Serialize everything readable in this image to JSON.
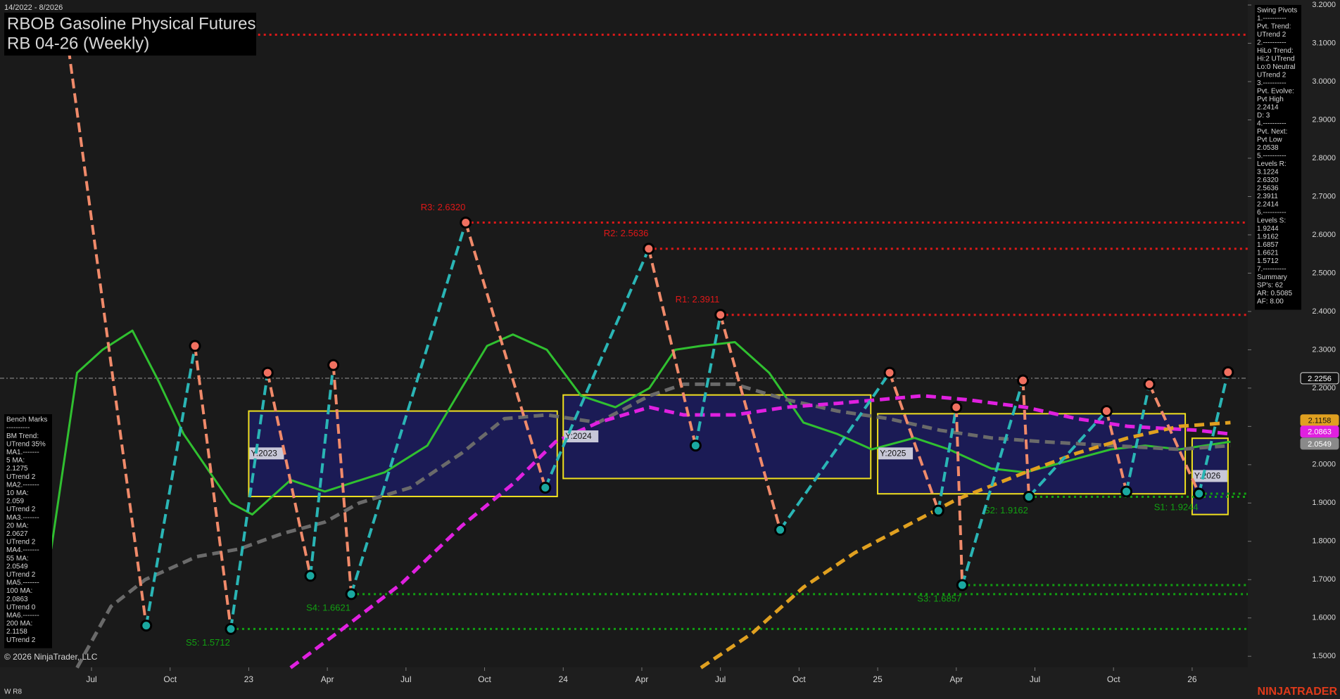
{
  "chart_data": {
    "type": "line",
    "title": "RBOB Gasoline Physical Futures",
    "subtitle": "RB 04-26 (Weekly)",
    "date_range": "14/2022 - 8/2026",
    "copyright": "© 2026 NinjaTrader, LLC",
    "footer_left": "W R8",
    "brand": "NINJATRADER",
    "xlim": [
      2022.209,
      2026.177
    ],
    "xticks": [
      {
        "value": 2022.5,
        "label": "Jul"
      },
      {
        "value": 2022.75,
        "label": "Oct"
      },
      {
        "value": 2023,
        "label": "23"
      },
      {
        "value": 2023.25,
        "label": "Apr"
      },
      {
        "value": 2023.5,
        "label": "Jul"
      },
      {
        "value": 2023.75,
        "label": "Oct"
      },
      {
        "value": 2024,
        "label": "24"
      },
      {
        "value": 2024.25,
        "label": "Apr"
      },
      {
        "value": 2024.5,
        "label": "Jul"
      },
      {
        "value": 2024.75,
        "label": "Oct"
      },
      {
        "value": 2025,
        "label": "25"
      },
      {
        "value": 2025.25,
        "label": "Apr"
      },
      {
        "value": 2025.5,
        "label": "Jul"
      },
      {
        "value": 2025.75,
        "label": "Oct"
      },
      {
        "value": 2026,
        "label": "26"
      }
    ],
    "ylim": [
      1.471,
      3.213
    ],
    "yticks": [
      {
        "value": 3.2,
        "label": "3.2000"
      },
      {
        "value": 3.1,
        "label": "3.1000"
      },
      {
        "value": 3.0,
        "label": "3.0000"
      },
      {
        "value": 2.9,
        "label": "2.9000"
      },
      {
        "value": 2.8,
        "label": "2.8000"
      },
      {
        "value": 2.7,
        "label": "2.7000"
      },
      {
        "value": 2.6,
        "label": "2.6000"
      },
      {
        "value": 2.5,
        "label": "2.5000"
      },
      {
        "value": 2.4,
        "label": "2.4000"
      },
      {
        "value": 2.3,
        "label": "2.3000"
      },
      {
        "value": 2.2,
        "label": "2.2000"
      },
      {
        "value": 2.1,
        "label": "2.1000"
      },
      {
        "value": 2.0,
        "label": "2.0000"
      },
      {
        "value": 1.9,
        "label": "1.9000"
      },
      {
        "value": 1.8,
        "label": "1.8000"
      },
      {
        "value": 1.7,
        "label": "1.7000"
      },
      {
        "value": 1.6,
        "label": "1.6000"
      },
      {
        "value": 1.5,
        "label": "1.5000"
      }
    ],
    "current_price": {
      "value": 2.2256,
      "color": "#9a9a9a"
    },
    "price_tags": [
      {
        "value": 2.2256,
        "color": "#111111",
        "text_color": "#ffffff"
      },
      {
        "value": 2.1158,
        "color": "#e0a020",
        "text_color": "#111111"
      },
      {
        "value": 2.0863,
        "color": "#e020e0",
        "text_color": "#ffffff"
      },
      {
        "value": 2.0549,
        "color": "#8a8a8a",
        "text_color": "#ffffff"
      }
    ],
    "year_boxes": [
      {
        "label": "Y:2023",
        "x": [
          2023.0,
          2023.981
        ],
        "range": [
          1.917,
          2.14
        ]
      },
      {
        "label": "Y:2024",
        "x": [
          2024.0,
          2024.978
        ],
        "range": [
          1.964,
          2.182
        ]
      },
      {
        "label": "Y:2025",
        "x": [
          2025.0,
          2025.978
        ],
        "range": [
          1.924,
          2.133
        ]
      },
      {
        "label": "Y:2026",
        "x": [
          2026.0,
          2026.114
        ],
        "range": [
          1.87,
          2.069
        ]
      }
    ],
    "resistance_color": "#e01818",
    "resistance_levels": [
      {
        "value": 3.1224,
        "x": 2022.421
      },
      {
        "label": "R3: 2.6320",
        "value": 2.632,
        "x": 2023.69
      },
      {
        "label": "R2: 2.5636",
        "value": 2.5636,
        "x": 2024.272
      },
      {
        "label": "R1: 2.3911",
        "value": 2.3911,
        "x": 2024.5
      }
    ],
    "support_color": "#12a012",
    "support_levels": [
      {
        "label": "S1: 1.9244",
        "value": 1.9244,
        "x": 2026.022
      },
      {
        "label": "S2: 1.9162",
        "value": 1.9162,
        "x": 2025.481
      },
      {
        "label": "S3: 1.6857",
        "value": 1.6857,
        "x": 2025.269
      },
      {
        "label": "S4: 1.6621",
        "value": 1.6621,
        "x": 2023.326
      },
      {
        "label": "S5: 1.5712",
        "value": 1.5712,
        "x": 2022.943
      }
    ],
    "moving_averages": [
      {
        "color": "#30c030",
        "dash": false,
        "x": [
          2022.372,
          2022.454,
          2022.535,
          2022.63,
          2022.712,
          2022.793,
          2022.943,
          2023.011,
          2023.133,
          2023.242,
          2023.432,
          2023.568,
          2023.677,
          2023.758,
          2023.84,
          2023.948,
          2024.057,
          2024.166,
          2024.274,
          2024.356,
          2024.438,
          2024.546,
          2024.655,
          2024.764,
          2024.872,
          2024.981,
          2025.117,
          2025.226,
          2025.361,
          2025.47,
          2025.606,
          2025.742,
          2025.851,
          2025.959,
          2026.122
        ],
        "values": [
          1.78,
          2.24,
          2.3,
          2.35,
          2.22,
          2.08,
          1.9,
          1.87,
          1.96,
          1.93,
          1.98,
          2.05,
          2.2,
          2.31,
          2.34,
          2.3,
          2.18,
          2.15,
          2.2,
          2.3,
          2.31,
          2.32,
          2.24,
          2.11,
          2.08,
          2.04,
          2.07,
          2.04,
          1.99,
          1.98,
          2.01,
          2.04,
          2.05,
          2.04,
          2.06
        ]
      },
      {
        "color": "#6a6a6a",
        "dash": true,
        "x": [
          2022.454,
          2022.562,
          2022.671,
          2022.834,
          2022.97,
          2023.106,
          2023.242,
          2023.351,
          2023.514,
          2023.677,
          2023.813,
          2023.948,
          2024.111,
          2024.274,
          2024.383,
          2024.546,
          2024.709,
          2024.872,
          2025.035,
          2025.198,
          2025.361,
          2025.524,
          2025.742,
          2025.959,
          2026.122
        ],
        "values": [
          1.47,
          1.63,
          1.7,
          1.76,
          1.78,
          1.82,
          1.85,
          1.9,
          1.94,
          2.03,
          2.12,
          2.13,
          2.11,
          2.18,
          2.21,
          2.21,
          2.17,
          2.14,
          2.12,
          2.09,
          2.07,
          2.06,
          2.05,
          2.04,
          2.05
        ]
      },
      {
        "color": "#e020e0",
        "dash": true,
        "x": [
          2023.133,
          2023.296,
          2023.486,
          2023.677,
          2023.84,
          2023.976,
          2024.111,
          2024.274,
          2024.383,
          2024.546,
          2024.709,
          2024.872,
          2025.008,
          2025.144,
          2025.28,
          2025.47,
          2025.633,
          2025.796,
          2026.014,
          2026.122
        ],
        "values": [
          1.47,
          1.57,
          1.69,
          1.84,
          1.95,
          2.06,
          2.11,
          2.15,
          2.13,
          2.13,
          2.15,
          2.16,
          2.17,
          2.18,
          2.17,
          2.15,
          2.12,
          2.1,
          2.09,
          2.08
        ]
      },
      {
        "color": "#e0a020",
        "dash": true,
        "x": [
          2024.438,
          2024.601,
          2024.764,
          2024.927,
          2025.09,
          2025.253,
          2025.47,
          2025.633,
          2025.796,
          2025.959,
          2026.122
        ],
        "values": [
          1.47,
          1.56,
          1.68,
          1.77,
          1.84,
          1.91,
          1.98,
          2.03,
          2.07,
          2.1,
          2.11
        ]
      }
    ],
    "swing_pivots": {
      "up_color": "#2ab5b5",
      "down_color": "#f08a6a",
      "high_color": "#f07060",
      "low_color": "#1aa8a0",
      "x": [
        2022.421,
        2022.674,
        2022.829,
        2022.943,
        2023.06,
        2023.196,
        2023.269,
        2023.326,
        2023.69,
        2023.943,
        2024.272,
        2024.421,
        2024.5,
        2024.69,
        2025.038,
        2025.193,
        2025.25,
        2025.269,
        2025.462,
        2025.481,
        2025.728,
        2025.791,
        2025.864,
        2026.022,
        2026.114
      ],
      "values": [
        3.1224,
        1.58,
        2.31,
        1.5712,
        2.24,
        1.71,
        2.26,
        1.6621,
        2.632,
        1.94,
        2.5636,
        2.05,
        2.3911,
        1.83,
        2.24,
        1.88,
        2.15,
        1.6857,
        2.22,
        1.9162,
        2.14,
        1.93,
        2.21,
        1.9244,
        2.2414
      ]
    },
    "swing_panel": [
      "Swing Pivots",
      "1.----------",
      "Pvt. Trend:",
      "UTrend 2",
      "2.----------",
      "HiLo Trend:",
      "Hi:2 UTrend",
      "Lo:0 Neutral",
      "UTrend 2",
      "3.----------",
      "Pvt. Evolve:",
      "Pvt High",
      "2.2414",
      "D: 3",
      "4.----------",
      "Pvt. Next:",
      "Pvt Low",
      "2.0538",
      "5.----------",
      "Levels R:",
      "3.1224",
      "2.6320",
      "2.5636",
      "2.3911",
      "2.2414",
      "6.----------",
      "Levels S:",
      "1.9244",
      "1.9162",
      "1.6857",
      "1.6621",
      "1.5712",
      "7.----------",
      "Summary",
      "SP's: 62",
      "AR: 0.5085",
      "AF: 8.00"
    ],
    "bench_panel": [
      "Bench Marks",
      "----------",
      "BM Trend:",
      "UTrend 35%",
      "MA1.-------",
      "5 MA:",
      "2.1275",
      "UTrend 2",
      "MA2.-------",
      "10 MA:",
      "2.059",
      "UTrend 2",
      "MA3.-------",
      "20 MA:",
      "2.0627",
      "UTrend 2",
      "MA4.-------",
      "55 MA:",
      "2.0549",
      "UTrend 2",
      "MA5.-------",
      "100 MA:",
      "2.0863",
      "UTrend 0",
      "MA6.-------",
      "200 MA:",
      "2.1158",
      "UTrend 2"
    ]
  }
}
